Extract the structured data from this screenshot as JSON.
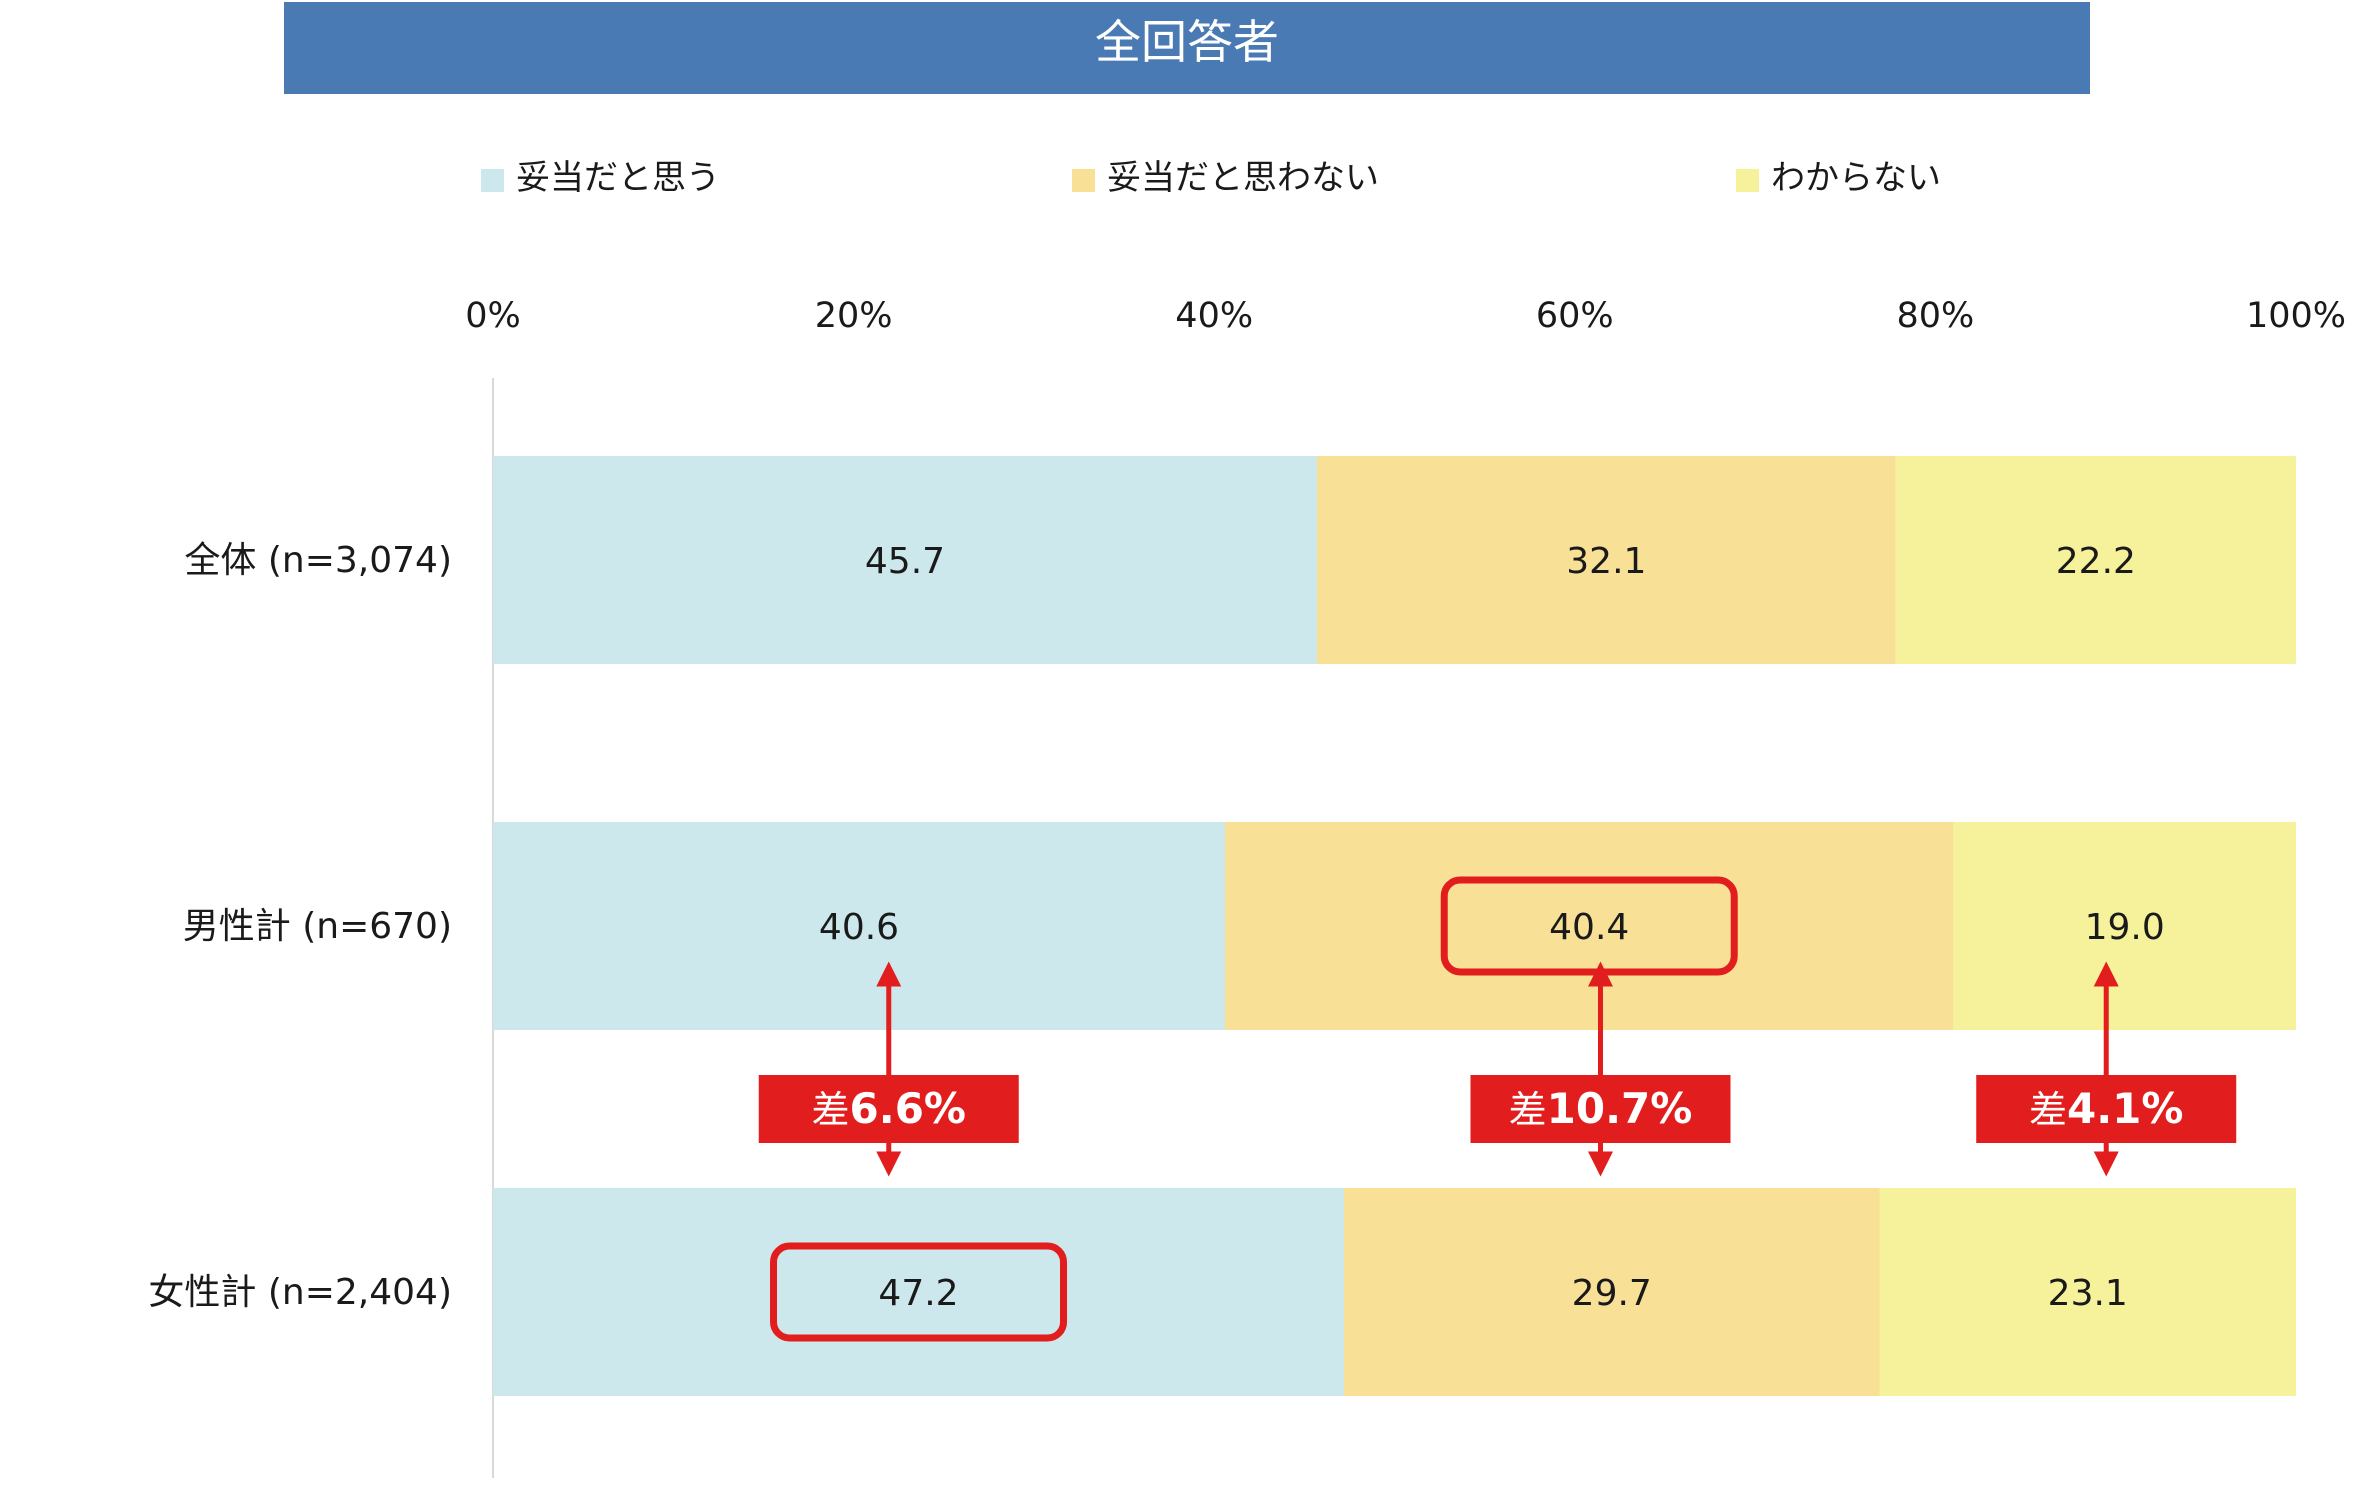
{
  "colors": {
    "title_bg": "#4a7ab3",
    "title_text": "#ffffff",
    "axis_line": "#d9d9d9",
    "text": "#1a1a1a",
    "highlight": "#e21d1d",
    "callout_text": "#ffffff"
  },
  "chart_data": {
    "type": "bar",
    "orientation": "horizontal",
    "stacked": true,
    "title": "全回答者",
    "categories": [
      "全体 (n=3,074)",
      "男性計 (n=670)",
      "女性計 (n=2,404)"
    ],
    "series": [
      {
        "name": "妥当だと思う",
        "color": "#cde8ec",
        "values": [
          45.7,
          40.6,
          47.2
        ],
        "labels": [
          "45.7",
          "40.6",
          "47.2"
        ]
      },
      {
        "name": "妥当だと思わない",
        "color": "#f8e097",
        "values": [
          32.1,
          40.4,
          29.7
        ],
        "labels": [
          "32.1",
          "40.4",
          "29.7"
        ]
      },
      {
        "name": "わからない",
        "color": "#f6f29c",
        "values": [
          22.2,
          19.0,
          23.1
        ],
        "labels": [
          "22.2",
          "19.0",
          "23.1"
        ]
      }
    ],
    "xlim": [
      0,
      100
    ],
    "x_ticks": [
      "0%",
      "20%",
      "40%",
      "60%",
      "80%",
      "100%"
    ],
    "x_axis_position": "top",
    "legend_position": "top",
    "grid": false,
    "highlights": [
      {
        "category": "男性計 (n=670)",
        "series": "妥当だと思わない"
      },
      {
        "category": "女性計 (n=2,404)",
        "series": "妥当だと思う"
      }
    ],
    "callouts": [
      {
        "prefix": "差",
        "value": "6.6%",
        "series": "妥当だと思う"
      },
      {
        "prefix": "差",
        "value": "10.7%",
        "series": "妥当だと思わない"
      },
      {
        "prefix": "差",
        "value": "4.1%",
        "series": "わからない"
      }
    ]
  }
}
